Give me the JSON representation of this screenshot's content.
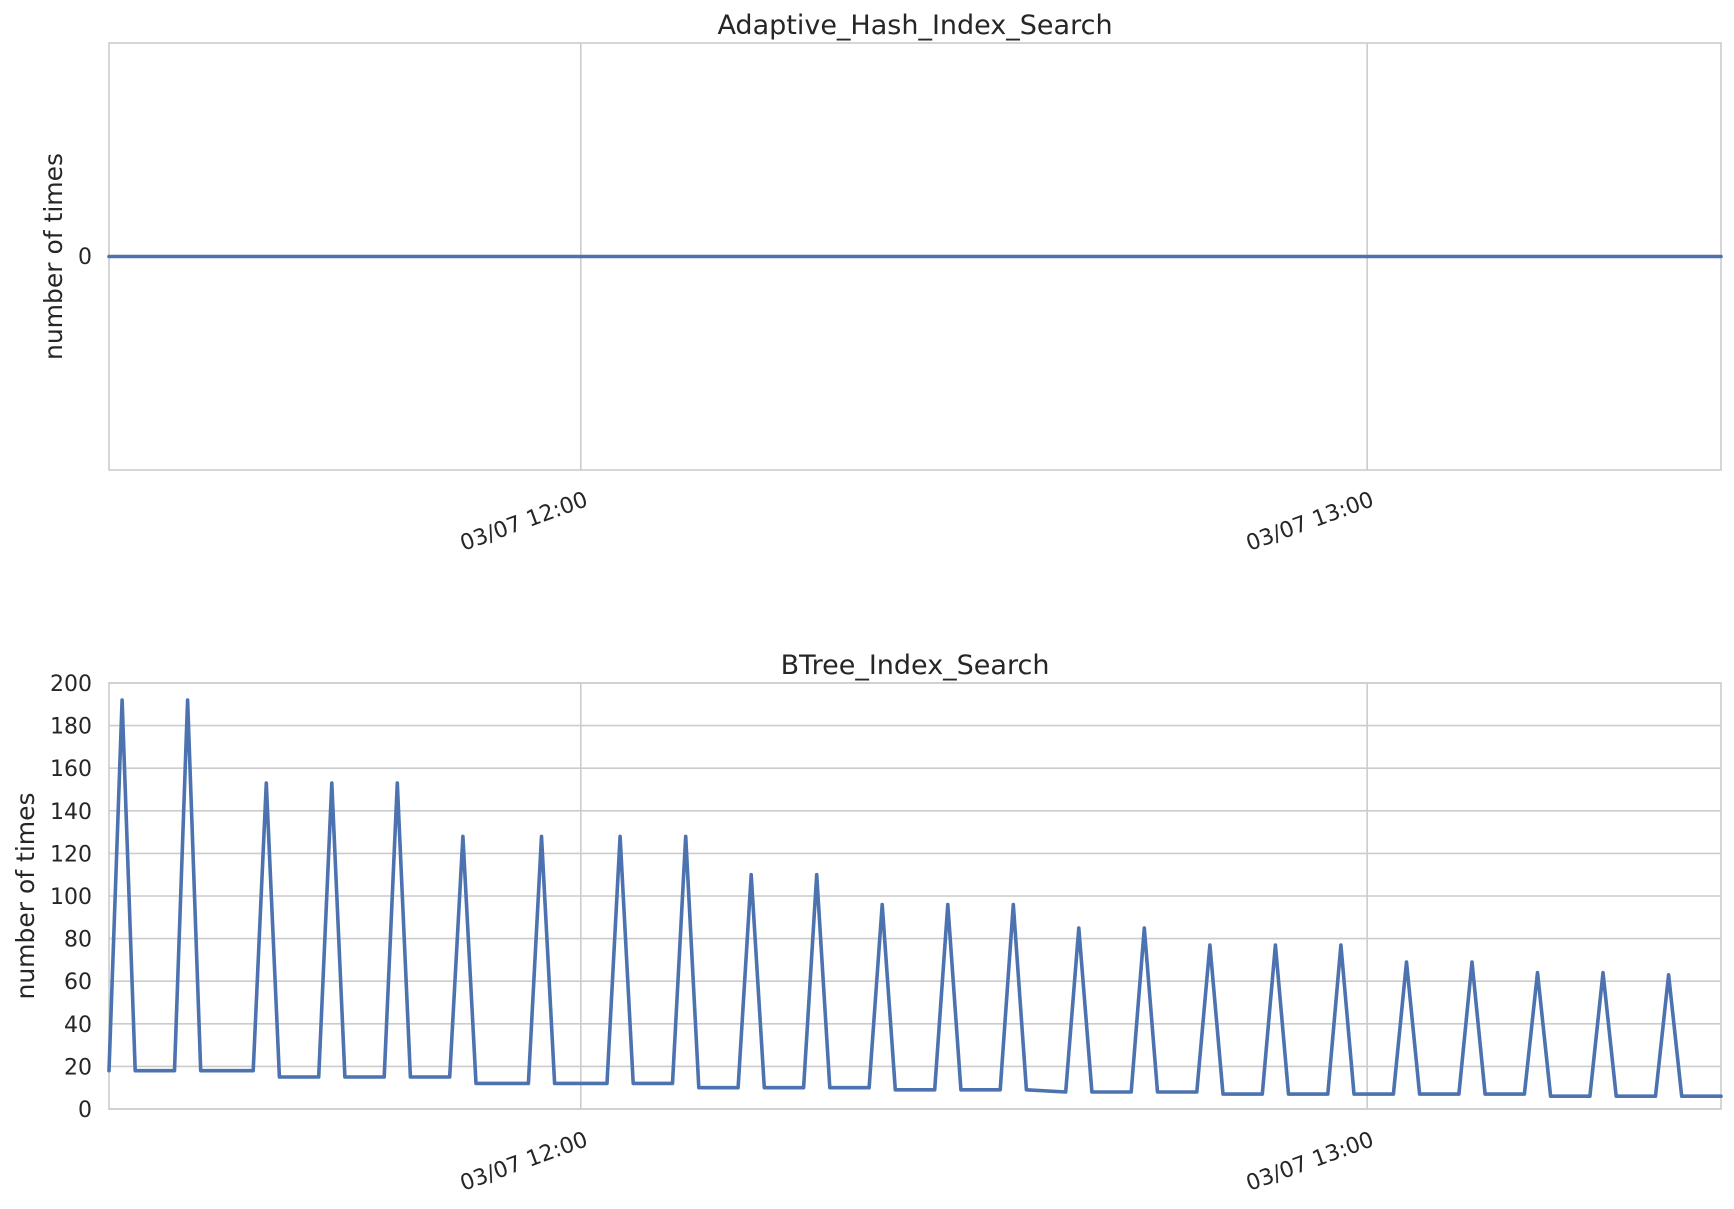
{
  "charts": [
    {
      "title": "Adaptive_Hash_Index_Search",
      "ylabel": "number of times",
      "xticks": [
        "03/07 12:00",
        "03/07 13:00"
      ],
      "yticks": [
        "0"
      ]
    },
    {
      "title": "BTree_Index_Search",
      "ylabel": "number of times",
      "xticks": [
        "03/07 12:00",
        "03/07 13:00"
      ],
      "yticks": [
        "0",
        "20",
        "40",
        "60",
        "80",
        "100",
        "120",
        "140",
        "160",
        "180",
        "200"
      ]
    }
  ],
  "chart_data": [
    {
      "type": "line",
      "title": "Adaptive_Hash_Index_Search",
      "xlabel": "",
      "ylabel": "number of times",
      "x_unit": "minutes after 11:24 on 03/07",
      "xlim": [
        0,
        123
      ],
      "ylim": [
        -1,
        1
      ],
      "grid": true,
      "series": [
        {
          "name": "Adaptive_Hash_Index_Search",
          "color": "#4c72b0",
          "x": [
            0,
            123
          ],
          "values": [
            0,
            0
          ]
        }
      ]
    },
    {
      "type": "line",
      "title": "BTree_Index_Search",
      "xlabel": "",
      "ylabel": "number of times",
      "x_unit": "minutes after 11:24 on 03/07",
      "xlim": [
        0,
        123
      ],
      "ylim": [
        0,
        200
      ],
      "grid": true,
      "series": [
        {
          "name": "BTree_Index_Search",
          "color": "#4c72b0",
          "x": [
            0,
            1,
            2,
            5,
            6,
            7,
            11,
            12,
            13,
            16,
            17,
            18,
            21,
            22,
            23,
            26,
            27,
            28,
            30,
            32,
            33,
            34,
            38,
            39,
            40,
            43,
            44,
            45,
            48,
            49,
            50,
            53,
            54,
            55,
            58,
            59,
            60,
            63,
            64,
            65,
            68,
            69,
            70,
            73,
            74,
            75,
            78,
            79,
            80,
            83,
            84,
            85,
            88,
            89,
            90,
            93,
            94,
            95,
            98,
            99,
            100,
            103,
            104,
            105,
            108,
            109,
            110,
            113,
            114,
            115,
            118,
            119,
            120,
            123
          ],
          "values": [
            18,
            192,
            18,
            18,
            192,
            18,
            18,
            153,
            15,
            15,
            153,
            15,
            15,
            153,
            15,
            15,
            128,
            12,
            12,
            12,
            128,
            12,
            12,
            128,
            12,
            12,
            128,
            10,
            10,
            110,
            10,
            10,
            110,
            10,
            10,
            96,
            9,
            9,
            96,
            9,
            9,
            96,
            9,
            8,
            85,
            8,
            8,
            85,
            8,
            8,
            77,
            7,
            7,
            77,
            7,
            7,
            77,
            7,
            7,
            69,
            7,
            7,
            69,
            7,
            7,
            64,
            6,
            6,
            64,
            6,
            6,
            63,
            6,
            6
          ]
        }
      ]
    }
  ]
}
